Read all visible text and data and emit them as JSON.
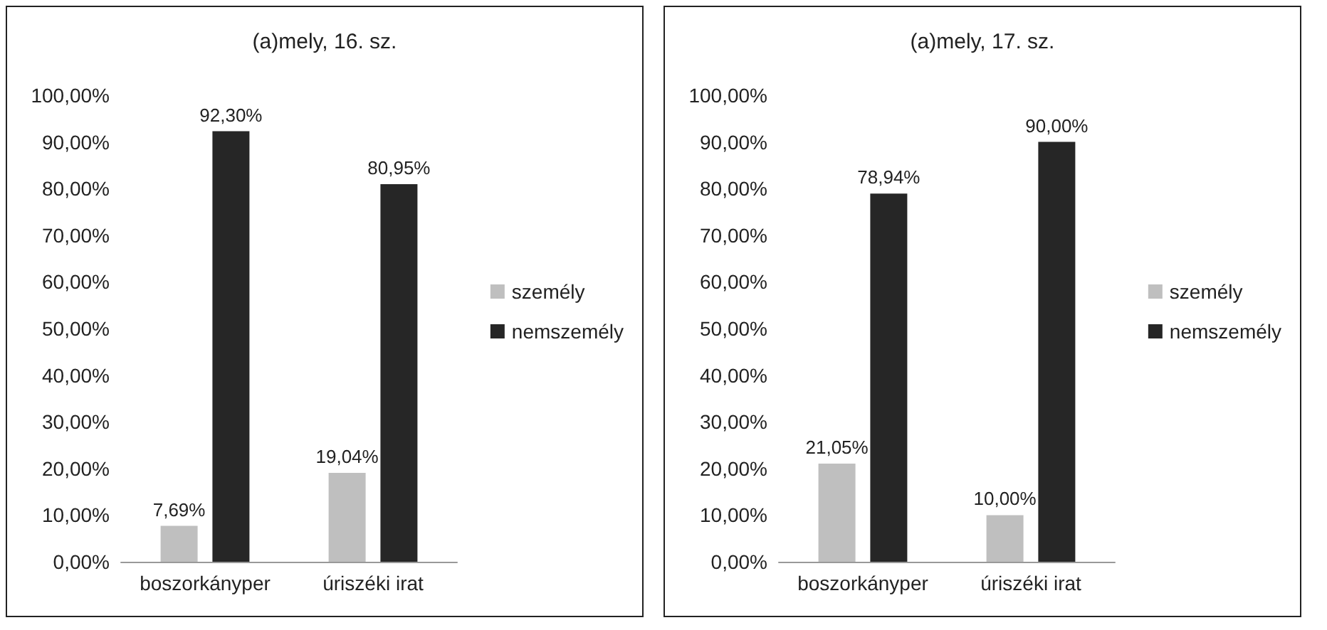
{
  "chart_data": [
    {
      "type": "bar",
      "title": "(a)mely, 16. sz.",
      "categories": [
        "boszorkányper",
        "úriszéki irat"
      ],
      "series": [
        {
          "name": "személy",
          "color": "#bfbfbf",
          "values": [
            7.69,
            19.04
          ],
          "value_labels": [
            "7,69%",
            "19,04%"
          ]
        },
        {
          "name": "nemszemély",
          "color": "#262626",
          "values": [
            92.3,
            80.95
          ],
          "value_labels": [
            "92,30%",
            "80,95%"
          ]
        }
      ],
      "ylim": [
        0,
        100
      ],
      "yticks": [
        {
          "value": 0,
          "label": "0,00%"
        },
        {
          "value": 10,
          "label": "10,00%"
        },
        {
          "value": 20,
          "label": "20,00%"
        },
        {
          "value": 30,
          "label": "30,00%"
        },
        {
          "value": 40,
          "label": "40,00%"
        },
        {
          "value": 50,
          "label": "50,00%"
        },
        {
          "value": 60,
          "label": "60,00%"
        },
        {
          "value": 70,
          "label": "70,00%"
        },
        {
          "value": 80,
          "label": "80,00%"
        },
        {
          "value": 90,
          "label": "90,00%"
        },
        {
          "value": 100,
          "label": "100,00%"
        }
      ],
      "grid": false,
      "legend": "right"
    },
    {
      "type": "bar",
      "title": "(a)mely, 17. sz.",
      "categories": [
        "boszorkányper",
        "úriszéki irat"
      ],
      "series": [
        {
          "name": "személy",
          "color": "#bfbfbf",
          "values": [
            21.05,
            10.0
          ],
          "value_labels": [
            "21,05%",
            "10,00%"
          ]
        },
        {
          "name": "nemszemély",
          "color": "#262626",
          "values": [
            78.94,
            90.0
          ],
          "value_labels": [
            "78,94%",
            "90,00%"
          ]
        }
      ],
      "ylim": [
        0,
        100
      ],
      "yticks": [
        {
          "value": 0,
          "label": "0,00%"
        },
        {
          "value": 10,
          "label": "10,00%"
        },
        {
          "value": 20,
          "label": "20,00%"
        },
        {
          "value": 30,
          "label": "30,00%"
        },
        {
          "value": 40,
          "label": "40,00%"
        },
        {
          "value": 50,
          "label": "50,00%"
        },
        {
          "value": 60,
          "label": "60,00%"
        },
        {
          "value": 70,
          "label": "70,00%"
        },
        {
          "value": 80,
          "label": "80,00%"
        },
        {
          "value": 90,
          "label": "90,00%"
        },
        {
          "value": 100,
          "label": "100,00%"
        }
      ],
      "grid": false,
      "legend": "right"
    }
  ]
}
